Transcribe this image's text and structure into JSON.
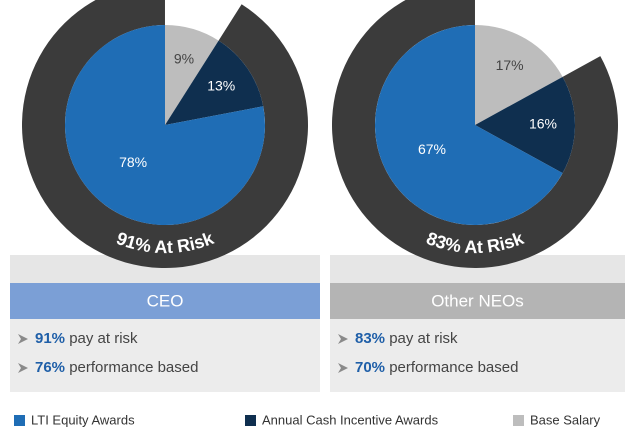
{
  "legend": [
    {
      "name": "LTI Equity Awards",
      "color": "#1f6db5"
    },
    {
      "name": "Annual Cash Incentive Awards",
      "color": "#0f2f4f"
    },
    {
      "name": "Base Salary",
      "color": "#bdbdbd"
    }
  ],
  "chart_data": [
    {
      "type": "pie",
      "title": "CEO",
      "title_color": "#7b9fd6",
      "values": [
        78,
        13,
        9
      ],
      "value_labels": [
        "78%",
        "13%",
        "9%"
      ],
      "at_risk": 91,
      "ring_label": "91% At Risk",
      "notes": [
        {
          "value": "91%",
          "text": "pay at risk"
        },
        {
          "value": "76%",
          "text": "performance based"
        }
      ]
    },
    {
      "type": "pie",
      "title": "Other NEOs",
      "title_color": "#b4b4b4",
      "values": [
        67,
        16,
        17
      ],
      "value_labels": [
        "67%",
        "16%",
        "17%"
      ],
      "at_risk": 83,
      "ring_label": "83% At Risk",
      "notes": [
        {
          "value": "83%",
          "text": "pay at risk"
        },
        {
          "value": "70%",
          "text": "performance based"
        }
      ]
    }
  ]
}
